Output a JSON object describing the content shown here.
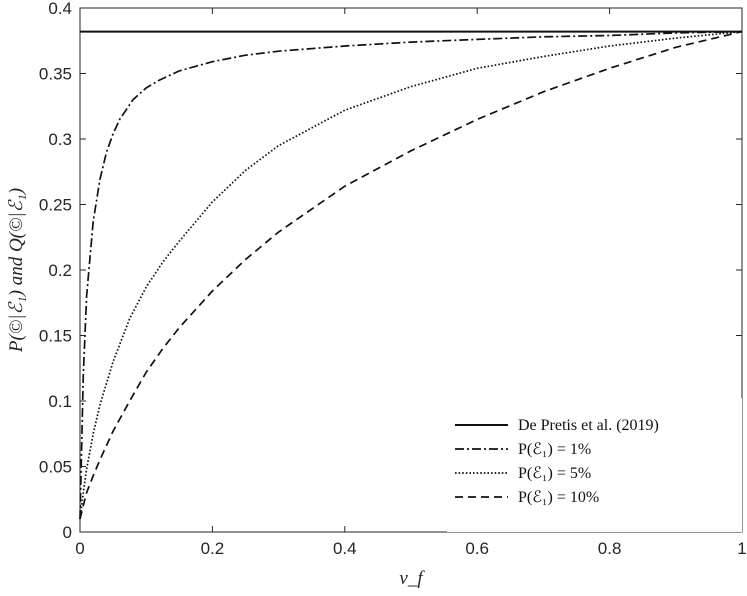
{
  "chart_data": {
    "type": "line",
    "title": "",
    "xlabel": "ν_f",
    "ylabel": "P(©|ℰ₁) and Q(©|ℰ₁)",
    "xlim": [
      0,
      1
    ],
    "ylim": [
      0,
      0.4
    ],
    "xticks": [
      0,
      0.2,
      0.4,
      0.6,
      0.8,
      1
    ],
    "xtick_labels": [
      "0",
      "0.2",
      "0.4",
      "0.6",
      "0.8",
      "1"
    ],
    "yticks": [
      0,
      0.05,
      0.1,
      0.15,
      0.2,
      0.25,
      0.3,
      0.35,
      0.4
    ],
    "ytick_labels": [
      "0",
      "0.05",
      "0.1",
      "0.15",
      "0.2",
      "0.25",
      "0.3",
      "0.35",
      "0.4"
    ],
    "grid": false,
    "legend_position": "bottom-right",
    "series": [
      {
        "name": "De Pretis et al. (2019)",
        "style": "solid",
        "x": [
          0,
          1
        ],
        "y": [
          0.382,
          0.382
        ]
      },
      {
        "name": "P(ℰ₁) = 1%",
        "style": "dashdot",
        "x": [
          0,
          0.005,
          0.01,
          0.02,
          0.03,
          0.04,
          0.05,
          0.06,
          0.08,
          0.1,
          0.12,
          0.15,
          0.2,
          0.25,
          0.3,
          0.4,
          0.5,
          0.6,
          0.7,
          0.8,
          0.9,
          1
        ],
        "y": [
          0.01,
          0.12,
          0.18,
          0.237,
          0.269,
          0.29,
          0.304,
          0.315,
          0.33,
          0.339,
          0.345,
          0.352,
          0.359,
          0.364,
          0.367,
          0.371,
          0.374,
          0.376,
          0.378,
          0.379,
          0.381,
          0.382
        ]
      },
      {
        "name": "P(ℰ₁) = 5%",
        "style": "dotted",
        "x": [
          0,
          0.005,
          0.01,
          0.02,
          0.03,
          0.05,
          0.075,
          0.1,
          0.125,
          0.15,
          0.2,
          0.25,
          0.3,
          0.4,
          0.5,
          0.6,
          0.7,
          0.8,
          0.9,
          1
        ],
        "y": [
          0.01,
          0.03,
          0.048,
          0.075,
          0.097,
          0.13,
          0.163,
          0.187,
          0.206,
          0.222,
          0.252,
          0.276,
          0.295,
          0.322,
          0.34,
          0.354,
          0.363,
          0.371,
          0.377,
          0.382
        ]
      },
      {
        "name": "P(ℰ₁) = 10%",
        "style": "dashed",
        "x": [
          0,
          0.005,
          0.01,
          0.02,
          0.03,
          0.05,
          0.075,
          0.1,
          0.125,
          0.15,
          0.2,
          0.25,
          0.3,
          0.4,
          0.5,
          0.6,
          0.7,
          0.8,
          0.9,
          1
        ],
        "y": [
          0.01,
          0.02,
          0.03,
          0.043,
          0.055,
          0.077,
          0.1,
          0.122,
          0.14,
          0.156,
          0.184,
          0.208,
          0.229,
          0.264,
          0.291,
          0.315,
          0.336,
          0.354,
          0.37,
          0.382
        ]
      }
    ]
  },
  "legend": {
    "entries": [
      {
        "text": "De Pretis et al. (2019)"
      },
      {
        "text": "P(ℰ₁) = 1%"
      },
      {
        "text": "P(ℰ₁) = 5%"
      },
      {
        "text": "P(ℰ₁) = 10%"
      }
    ]
  }
}
